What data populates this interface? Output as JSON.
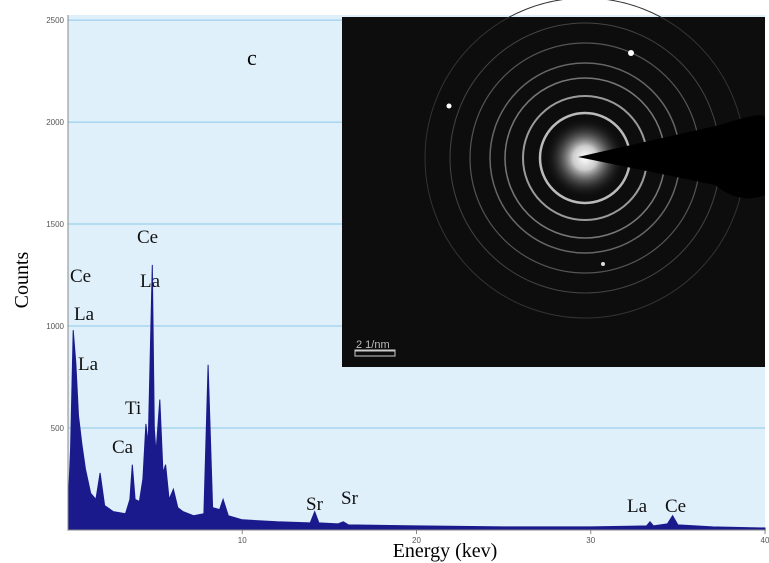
{
  "chart_data": {
    "type": "area",
    "panel_label": "c",
    "xlabel": "Energy (kev)",
    "ylabel": "Counts",
    "x": [
      0,
      0.15,
      0.3,
      0.45,
      0.6,
      0.8,
      1.0,
      1.3,
      1.6,
      1.84,
      2.1,
      2.6,
      3.3,
      3.55,
      3.69,
      3.85,
      4.1,
      4.3,
      4.47,
      4.6,
      4.84,
      4.95,
      5.05,
      5.27,
      5.45,
      5.6,
      5.8,
      6.05,
      6.3,
      6.6,
      7.2,
      7.8,
      8.04,
      8.3,
      8.7,
      8.9,
      9.2,
      10,
      12,
      13.9,
      14.16,
      14.4,
      15.5,
      15.8,
      16.1,
      20,
      25,
      30,
      33.2,
      33.4,
      33.6,
      34.4,
      34.7,
      35.0,
      37,
      40
    ],
    "values": [
      100,
      400,
      980,
      820,
      560,
      420,
      300,
      180,
      150,
      280,
      120,
      90,
      80,
      150,
      320,
      150,
      140,
      250,
      520,
      420,
      1300,
      500,
      380,
      640,
      280,
      320,
      150,
      200,
      110,
      90,
      70,
      80,
      810,
      110,
      100,
      150,
      70,
      50,
      40,
      35,
      90,
      35,
      30,
      40,
      25,
      20,
      15,
      15,
      20,
      40,
      20,
      30,
      70,
      25,
      15,
      10
    ],
    "color": "#1a1a8c",
    "xlim": [
      0,
      40
    ],
    "xticks": [
      10,
      20,
      30,
      40
    ],
    "ylim": [
      0,
      2525
    ],
    "yticks": [
      500,
      1000,
      1500,
      2000,
      2500
    ],
    "grid": true,
    "annotations": [
      "Ce",
      "La",
      "La",
      "Ce",
      "La",
      "Ti",
      "Ca",
      "Sr",
      "Sr",
      "La",
      "Ce"
    ]
  },
  "inset": {
    "scale_label": "2 1/nm"
  }
}
